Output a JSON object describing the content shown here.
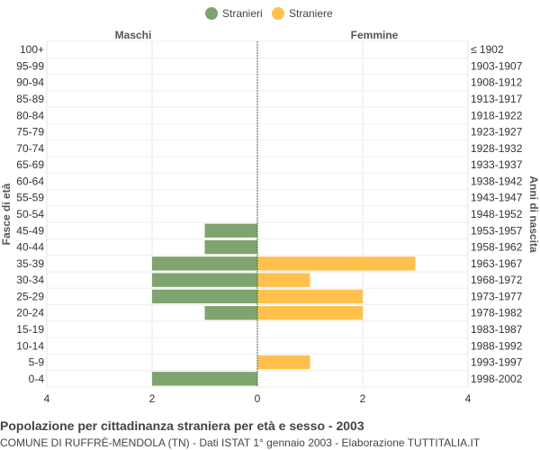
{
  "chart_data": {
    "type": "bar",
    "orientation": "horizontal-pyramid",
    "title": "Popolazione per cittadinanza straniera per età e sesso - 2003",
    "subtitle": "COMUNE DI RUFFRÈ-MENDOLA (TN) - Dati ISTAT 1° gennaio 2003 - Elaborazione TUTTITALIA.IT",
    "left_header": "Maschi",
    "right_header": "Femmine",
    "ylabel_left": "Fasce di età",
    "ylabel_right": "Anni di nascita",
    "legend_position": "top-center",
    "grid": true,
    "xlim": [
      -4,
      4
    ],
    "x_ticks": [
      -4,
      -2,
      0,
      2,
      4
    ],
    "x_tick_labels": [
      "4",
      "2",
      "0",
      "2",
      "4"
    ],
    "categories": [
      "100+",
      "95-99",
      "90-94",
      "85-89",
      "80-84",
      "75-79",
      "70-74",
      "65-69",
      "60-64",
      "55-59",
      "50-54",
      "45-49",
      "40-44",
      "35-39",
      "30-34",
      "25-29",
      "20-24",
      "15-19",
      "10-14",
      "5-9",
      "0-4"
    ],
    "birth_years": [
      "≤ 1902",
      "1903-1907",
      "1908-1912",
      "1913-1917",
      "1918-1922",
      "1923-1927",
      "1928-1932",
      "1933-1937",
      "1938-1942",
      "1943-1947",
      "1948-1952",
      "1953-1957",
      "1958-1962",
      "1963-1967",
      "1968-1972",
      "1973-1977",
      "1978-1982",
      "1983-1987",
      "1988-1992",
      "1993-1997",
      "1998-2002"
    ],
    "series": [
      {
        "name": "Stranieri",
        "side": "left",
        "color": "#7fa46f",
        "values": [
          0,
          0,
          0,
          0,
          0,
          0,
          0,
          0,
          0,
          0,
          0,
          1,
          1,
          2,
          2,
          2,
          1,
          0,
          0,
          0,
          2
        ]
      },
      {
        "name": "Straniere",
        "side": "right",
        "color": "#ffc04c",
        "values": [
          0,
          0,
          0,
          0,
          0,
          0,
          0,
          0,
          0,
          0,
          0,
          0,
          0,
          3,
          1,
          2,
          2,
          0,
          0,
          1,
          0
        ]
      }
    ]
  }
}
